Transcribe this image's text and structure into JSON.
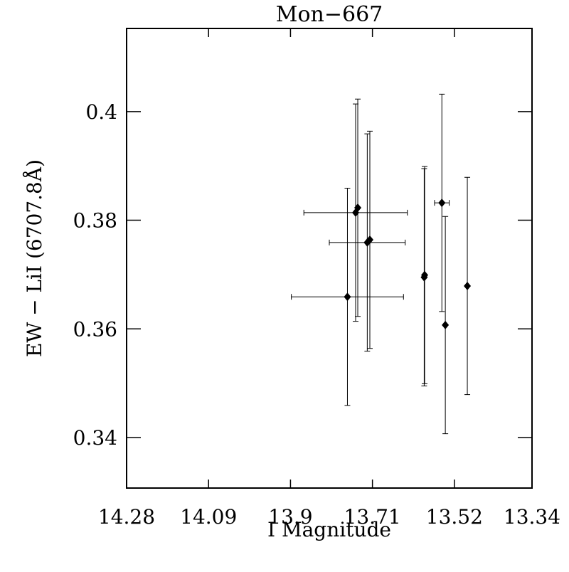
{
  "chart_data": {
    "type": "errorbar-scatter",
    "title": "Mon−667",
    "x_label": "I Magnitude",
    "y_label": "EW − LiI (6707.8Å)",
    "xlim": [
      14.28,
      13.34
    ],
    "xticks": [
      14.28,
      14.09,
      13.9,
      13.71,
      13.52,
      13.34
    ],
    "ylim": [
      0.3307,
      0.4153
    ],
    "yticks": [
      0.34,
      0.36,
      0.38,
      0.4
    ],
    "color": "#000000",
    "x": [
      13.768,
      13.749,
      13.744,
      13.722,
      13.716,
      13.59,
      13.589,
      13.549,
      13.541,
      13.49
    ],
    "values": [
      0.3659,
      0.3814,
      0.3823,
      0.3759,
      0.3764,
      0.3695,
      0.3699,
      0.3832,
      0.3607,
      0.3679
    ],
    "yerr": [
      0.02,
      0.02,
      0.02,
      0.02,
      0.02,
      0.02,
      0.02,
      0.02,
      0.02,
      0.02
    ],
    "xerr": [
      0.13,
      0.12,
      null,
      0.088,
      null,
      null,
      null,
      0.017,
      null,
      null
    ]
  }
}
